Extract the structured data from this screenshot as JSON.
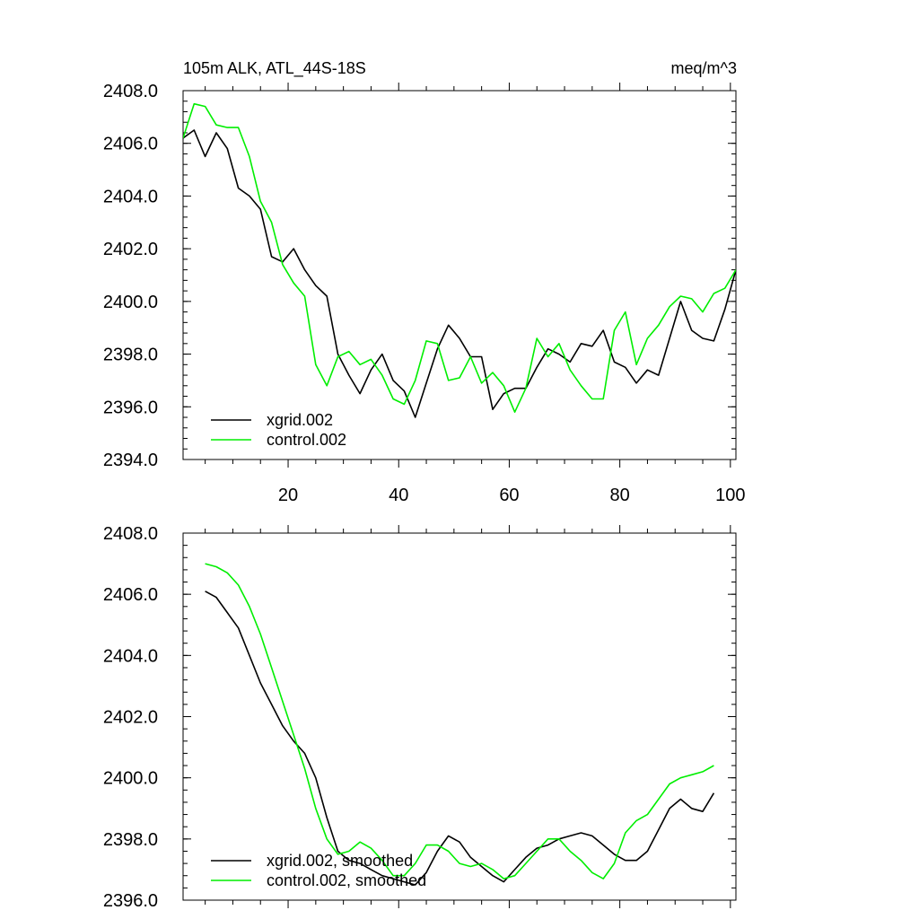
{
  "header": {
    "title_left": "105m ALK, ATL_44S-18S",
    "title_right": "meq/m^3"
  },
  "colors": {
    "series1": "#000000",
    "series2": "#00ee00",
    "axis": "#000000",
    "background": "#ffffff"
  },
  "chart_data": [
    {
      "type": "line",
      "title": "",
      "xlabel": "",
      "ylabel": "",
      "xlim": [
        1,
        101
      ],
      "ylim": [
        2394.0,
        2408.0
      ],
      "xticks": [
        "20",
        "40",
        "60",
        "80",
        "100"
      ],
      "yticks": [
        "2394.0",
        "2396.0",
        "2398.0",
        "2400.0",
        "2402.0",
        "2404.0",
        "2406.0",
        "2408.0"
      ],
      "grid": false,
      "legend_position": "bottom-left",
      "x": [
        1,
        3,
        5,
        7,
        9,
        11,
        13,
        15,
        17,
        19,
        21,
        23,
        25,
        27,
        29,
        31,
        33,
        35,
        37,
        39,
        41,
        43,
        45,
        47,
        49,
        51,
        53,
        55,
        57,
        59,
        61,
        63,
        65,
        67,
        69,
        71,
        73,
        75,
        77,
        79,
        81,
        83,
        85,
        87,
        89,
        91,
        93,
        95,
        97,
        99,
        101
      ],
      "series": [
        {
          "name": "xgrid.002",
          "color": "#000000",
          "values": [
            2406.2,
            2406.5,
            2405.5,
            2406.4,
            2405.8,
            2404.3,
            2404.0,
            2403.5,
            2401.7,
            2401.5,
            2402.0,
            2401.2,
            2400.6,
            2400.2,
            2398.0,
            2397.2,
            2396.5,
            2397.4,
            2398.0,
            2397.0,
            2396.6,
            2395.6,
            2396.9,
            2398.2,
            2399.1,
            2398.6,
            2397.9,
            2397.9,
            2395.9,
            2396.5,
            2396.7,
            2396.7,
            2397.5,
            2398.2,
            2398.0,
            2397.7,
            2398.4,
            2398.3,
            2398.9,
            2397.7,
            2397.5,
            2396.9,
            2397.4,
            2397.2,
            2398.6,
            2400.0,
            2398.9,
            2398.6,
            2398.5,
            2399.7,
            2401.2
          ]
        },
        {
          "name": "control.002",
          "color": "#00ee00",
          "values": [
            2406.2,
            2407.5,
            2407.4,
            2406.7,
            2406.6,
            2406.6,
            2405.5,
            2403.8,
            2403.0,
            2401.4,
            2400.7,
            2400.2,
            2397.6,
            2396.8,
            2397.9,
            2398.1,
            2397.6,
            2397.8,
            2397.2,
            2396.3,
            2396.1,
            2397.0,
            2398.5,
            2398.4,
            2397.0,
            2397.1,
            2397.9,
            2396.9,
            2397.3,
            2396.8,
            2395.8,
            2396.7,
            2398.6,
            2397.9,
            2398.4,
            2397.4,
            2396.8,
            2396.3,
            2396.3,
            2398.9,
            2399.6,
            2397.6,
            2398.6,
            2399.1,
            2399.8,
            2400.2,
            2400.1,
            2399.6,
            2400.3,
            2400.5,
            2401.2
          ]
        }
      ]
    },
    {
      "type": "line",
      "title": "",
      "xlabel": "",
      "ylabel": "",
      "xlim": [
        1,
        101
      ],
      "ylim": [
        2396.0,
        2408.0
      ],
      "xticks": [],
      "yticks": [
        "2396.0",
        "2398.0",
        "2400.0",
        "2402.0",
        "2404.0",
        "2406.0",
        "2408.0"
      ],
      "grid": false,
      "legend_position": "bottom-left",
      "x": [
        5,
        7,
        9,
        11,
        13,
        15,
        17,
        19,
        21,
        23,
        25,
        27,
        29,
        31,
        33,
        35,
        37,
        39,
        41,
        43,
        45,
        47,
        49,
        51,
        53,
        55,
        57,
        59,
        61,
        63,
        65,
        67,
        69,
        71,
        73,
        75,
        77,
        79,
        81,
        83,
        85,
        87,
        89,
        91,
        93,
        95,
        97
      ],
      "series": [
        {
          "name": "xgrid.002, smoothed",
          "color": "#000000",
          "values": [
            2406.1,
            2405.9,
            2405.4,
            2404.9,
            2404.0,
            2403.1,
            2402.4,
            2401.7,
            2401.2,
            2400.8,
            2400.0,
            2398.7,
            2397.6,
            2397.3,
            2397.2,
            2397.0,
            2396.8,
            2396.7,
            2396.6,
            2396.5,
            2396.9,
            2397.6,
            2398.1,
            2397.9,
            2397.4,
            2397.1,
            2396.8,
            2396.6,
            2397.0,
            2397.4,
            2397.7,
            2397.8,
            2398.0,
            2398.1,
            2398.2,
            2398.1,
            2397.8,
            2397.5,
            2397.3,
            2397.3,
            2397.6,
            2398.3,
            2399.0,
            2399.3,
            2399.0,
            2398.9,
            2399.5
          ]
        },
        {
          "name": "control.002, smoothed",
          "color": "#00ee00",
          "values": [
            2407.0,
            2406.9,
            2406.7,
            2406.3,
            2405.6,
            2404.7,
            2403.6,
            2402.5,
            2401.4,
            2400.3,
            2399.0,
            2398.0,
            2397.5,
            2397.6,
            2397.9,
            2397.7,
            2397.3,
            2396.8,
            2396.8,
            2397.2,
            2397.8,
            2397.8,
            2397.6,
            2397.2,
            2397.1,
            2397.2,
            2397.0,
            2396.7,
            2396.8,
            2397.2,
            2397.6,
            2398.0,
            2398.0,
            2397.6,
            2397.3,
            2396.9,
            2396.7,
            2397.2,
            2398.2,
            2398.6,
            2398.8,
            2399.3,
            2399.8,
            2400.0,
            2400.1,
            2400.2,
            2400.4
          ]
        }
      ]
    }
  ]
}
